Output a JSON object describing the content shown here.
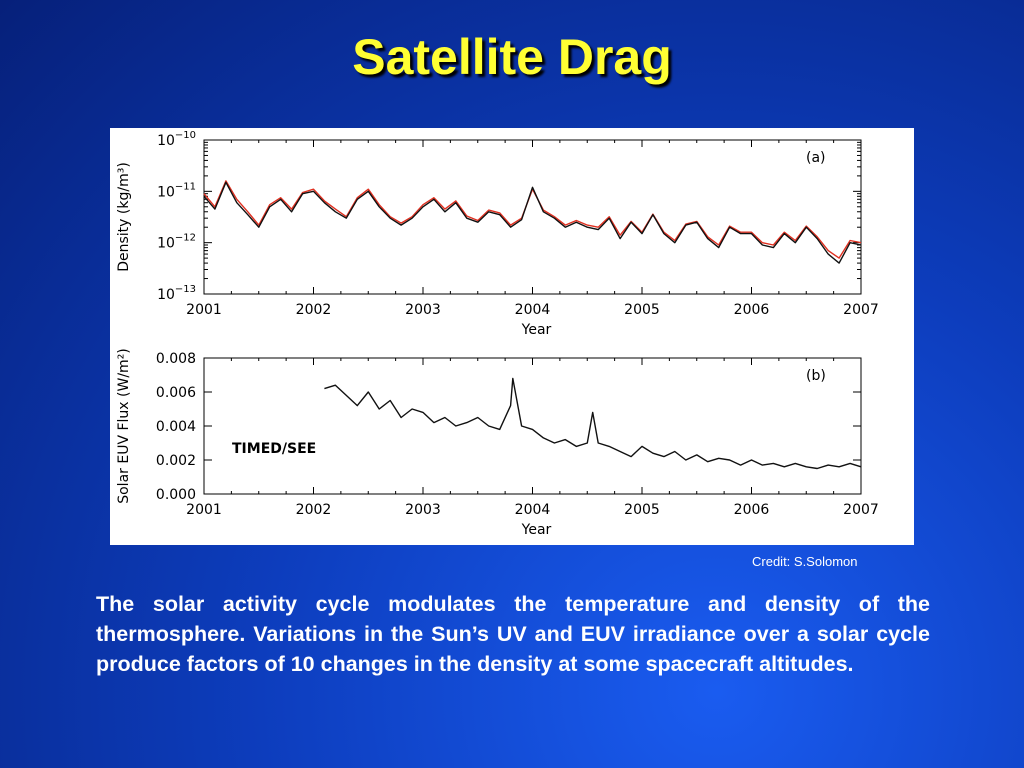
{
  "slide": {
    "title": "Satellite Drag",
    "credit": "Credit: S.Solomon",
    "body": "The solar activity cycle modulates the temperature and density of the thermosphere. Variations in the Sun’s UV and EUV irradiance over a solar cycle produce factors of 10 changes in the density at some spacecraft altitudes."
  },
  "colors": {
    "title": "#ffff33",
    "background": "#0d3dbd",
    "model_series": "#e03020",
    "observed_series": "#111111"
  },
  "chart_data": [
    {
      "type": "line",
      "panel_label": "(a)",
      "ylabel": "Density (kg/m³)",
      "xlabel": "Year",
      "yscale": "log",
      "ylim": [
        1e-13,
        1e-10
      ],
      "xlim": [
        2001,
        2007
      ],
      "x_ticks": [
        "2001",
        "2002",
        "2003",
        "2004",
        "2005",
        "2006",
        "2007"
      ],
      "y_ticks": [
        {
          "base": "10",
          "exp": "−10",
          "value": 1e-10
        },
        {
          "base": "10",
          "exp": "−11",
          "value": 1e-11
        },
        {
          "base": "10",
          "exp": "−12",
          "value": 1e-12
        },
        {
          "base": "10",
          "exp": "−13",
          "value": 1e-13
        }
      ],
      "grid": false,
      "series": [
        {
          "color": "#111111",
          "x": [
            2001.0,
            2001.1,
            2001.2,
            2001.3,
            2001.4,
            2001.5,
            2001.6,
            2001.7,
            2001.8,
            2001.9,
            2002.0,
            2002.1,
            2002.2,
            2002.3,
            2002.4,
            2002.5,
            2002.6,
            2002.7,
            2002.8,
            2002.9,
            2003.0,
            2003.1,
            2003.2,
            2003.3,
            2003.4,
            2003.5,
            2003.6,
            2003.7,
            2003.8,
            2003.9,
            2004.0,
            2004.1,
            2004.2,
            2004.3,
            2004.4,
            2004.5,
            2004.6,
            2004.7,
            2004.8,
            2004.9,
            2005.0,
            2005.1,
            2005.2,
            2005.3,
            2005.4,
            2005.5,
            2005.6,
            2005.7,
            2005.8,
            2005.9,
            2006.0,
            2006.1,
            2006.2,
            2006.3,
            2006.4,
            2006.5,
            2006.6,
            2006.7,
            2006.8,
            2006.9,
            2007.0
          ],
          "y": [
            8e-12,
            4.5e-12,
            1.5e-11,
            6e-12,
            3.5e-12,
            2e-12,
            5e-12,
            7e-12,
            4e-12,
            9e-12,
            1e-11,
            6e-12,
            4e-12,
            3e-12,
            7e-12,
            1e-11,
            5e-12,
            3e-12,
            2.2e-12,
            3e-12,
            5e-12,
            7e-12,
            4e-12,
            6e-12,
            3e-12,
            2.5e-12,
            4e-12,
            3.5e-12,
            2e-12,
            2.8e-12,
            1.2e-11,
            4e-12,
            3e-12,
            2e-12,
            2.5e-12,
            2e-12,
            1.8e-12,
            3e-12,
            1.2e-12,
            2.5e-12,
            1.5e-12,
            3.5e-12,
            1.5e-12,
            1e-12,
            2.2e-12,
            2.5e-12,
            1.2e-12,
            8e-13,
            2e-12,
            1.5e-12,
            1.5e-12,
            9e-13,
            8e-13,
            1.5e-12,
            1e-12,
            2e-12,
            1.2e-12,
            6e-13,
            4e-13,
            1e-12,
            9e-13
          ]
        },
        {
          "color": "#e03020",
          "x": [
            2001.0,
            2001.1,
            2001.2,
            2001.3,
            2001.4,
            2001.5,
            2001.6,
            2001.7,
            2001.8,
            2001.9,
            2002.0,
            2002.1,
            2002.2,
            2002.3,
            2002.4,
            2002.5,
            2002.6,
            2002.7,
            2002.8,
            2002.9,
            2003.0,
            2003.1,
            2003.2,
            2003.3,
            2003.4,
            2003.5,
            2003.6,
            2003.7,
            2003.8,
            2003.9,
            2004.0,
            2004.1,
            2004.2,
            2004.3,
            2004.4,
            2004.5,
            2004.6,
            2004.7,
            2004.8,
            2004.9,
            2005.0,
            2005.1,
            2005.2,
            2005.3,
            2005.4,
            2005.5,
            2005.6,
            2005.7,
            2005.8,
            2005.9,
            2006.0,
            2006.1,
            2006.2,
            2006.3,
            2006.4,
            2006.5,
            2006.6,
            2006.7,
            2006.8,
            2006.9,
            2007.0
          ],
          "y": [
            9e-12,
            5e-12,
            1.6e-11,
            7e-12,
            4e-12,
            2.2e-12,
            5.5e-12,
            7.5e-12,
            4.5e-12,
            9.5e-12,
            1.1e-11,
            6.5e-12,
            4.5e-12,
            3.2e-12,
            7.5e-12,
            1.1e-11,
            5.5e-12,
            3.2e-12,
            2.4e-12,
            3.2e-12,
            5.5e-12,
            7.5e-12,
            4.5e-12,
            6.5e-12,
            3.3e-12,
            2.7e-12,
            4.3e-12,
            3.8e-12,
            2.2e-12,
            3e-12,
            1.1e-11,
            4.3e-12,
            3.2e-12,
            2.2e-12,
            2.7e-12,
            2.2e-12,
            2e-12,
            3.2e-12,
            1.4e-12,
            2.6e-12,
            1.6e-12,
            3.6e-12,
            1.6e-12,
            1.1e-12,
            2.3e-12,
            2.6e-12,
            1.3e-12,
            9e-13,
            2.1e-12,
            1.6e-12,
            1.6e-12,
            1e-12,
            9e-13,
            1.6e-12,
            1.1e-12,
            2.1e-12,
            1.3e-12,
            7e-13,
            5e-13,
            1.1e-12,
            1e-12
          ]
        }
      ]
    },
    {
      "type": "line",
      "panel_label": "(b)",
      "ylabel": "Solar EUV Flux (W/m²)",
      "xlabel": "Year",
      "yscale": "linear",
      "ylim": [
        0,
        0.008
      ],
      "xlim": [
        2001,
        2007
      ],
      "x_ticks": [
        "2001",
        "2002",
        "2003",
        "2004",
        "2005",
        "2006",
        "2007"
      ],
      "y_ticks": [
        "0.000",
        "0.002",
        "0.004",
        "0.006",
        "0.008"
      ],
      "annotation": "TIMED/SEE",
      "grid": false,
      "series": [
        {
          "color": "#111111",
          "x": [
            2002.1,
            2002.2,
            2002.3,
            2002.4,
            2002.5,
            2002.6,
            2002.7,
            2002.8,
            2002.9,
            2003.0,
            2003.1,
            2003.2,
            2003.3,
            2003.4,
            2003.5,
            2003.6,
            2003.7,
            2003.8,
            2003.82,
            2003.9,
            2004.0,
            2004.1,
            2004.2,
            2004.3,
            2004.4,
            2004.5,
            2004.55,
            2004.6,
            2004.7,
            2004.8,
            2004.9,
            2005.0,
            2005.1,
            2005.2,
            2005.3,
            2005.4,
            2005.5,
            2005.6,
            2005.7,
            2005.8,
            2005.9,
            2006.0,
            2006.1,
            2006.2,
            2006.3,
            2006.4,
            2006.5,
            2006.6,
            2006.7,
            2006.8,
            2006.9,
            2007.0
          ],
          "y": [
            0.0062,
            0.0064,
            0.0058,
            0.0052,
            0.006,
            0.005,
            0.0055,
            0.0045,
            0.005,
            0.0048,
            0.0042,
            0.0045,
            0.004,
            0.0042,
            0.0045,
            0.004,
            0.0038,
            0.0052,
            0.0068,
            0.004,
            0.0038,
            0.0033,
            0.003,
            0.0032,
            0.0028,
            0.003,
            0.0048,
            0.003,
            0.0028,
            0.0025,
            0.0022,
            0.0028,
            0.0024,
            0.0022,
            0.0025,
            0.002,
            0.0023,
            0.0019,
            0.0021,
            0.002,
            0.0017,
            0.002,
            0.0017,
            0.0018,
            0.0016,
            0.0018,
            0.0016,
            0.0015,
            0.0017,
            0.0016,
            0.0018,
            0.0016
          ]
        }
      ]
    }
  ]
}
